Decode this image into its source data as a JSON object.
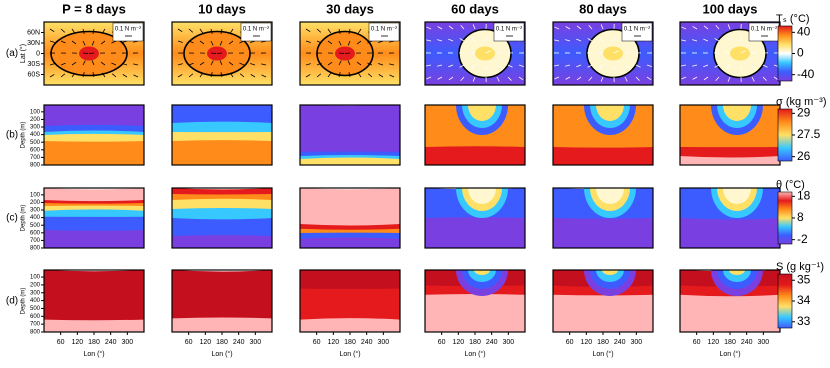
{
  "columns": [
    "P = 8 days",
    "10 days",
    "30 days",
    "60 days",
    "80 days",
    "100 days"
  ],
  "wind_label": "0.1 N m⁻²",
  "lat_axis": {
    "title": "Lat (°)",
    "lim": [
      -90,
      90
    ],
    "ticks": [
      {
        "value": 60,
        "label": "60N"
      },
      {
        "value": 30,
        "label": "30N"
      },
      0,
      {
        "value": -30,
        "label": "30S"
      },
      {
        "value": -60,
        "label": "60S"
      }
    ]
  },
  "depth_axis": {
    "title": "Depth (m)",
    "lim": [
      800,
      10
    ],
    "ticks": [
      100,
      200,
      300,
      400,
      500,
      600,
      700,
      800
    ]
  },
  "lon_axis": {
    "title": "Lon (°)",
    "lim": [
      0,
      360
    ],
    "ticks": [
      60,
      120,
      180,
      240,
      300
    ]
  },
  "rows": [
    {
      "label": "(a)",
      "colorbar": {
        "title": "Tₛ (°C)",
        "lim": [
          -52,
          52
        ],
        "ticks": [
          40,
          0,
          -40
        ]
      }
    },
    {
      "label": "(b)",
      "colorbar": {
        "title": "σ (kg m⁻³)",
        "lim": [
          25.7,
          29.3
        ],
        "ticks": [
          29,
          27.5,
          26
        ]
      }
    },
    {
      "label": "(c)",
      "colorbar": {
        "title": "θ (°C)",
        "lim": [
          -4,
          20
        ],
        "ticks": [
          18,
          8,
          -2
        ]
      }
    },
    {
      "label": "(d)",
      "colorbar": {
        "title": "S (g kg⁻¹)",
        "lim": [
          32.7,
          35.3
        ],
        "ticks": [
          35,
          34,
          33
        ]
      }
    }
  ]
}
